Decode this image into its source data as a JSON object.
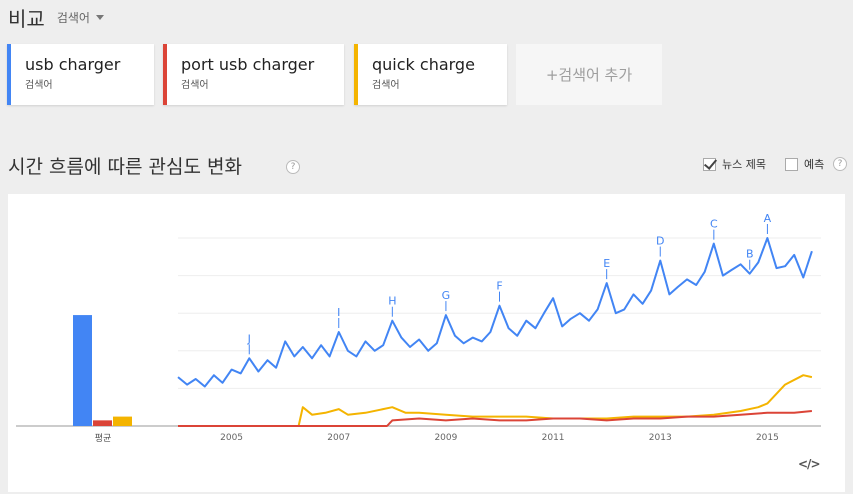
{
  "header": {
    "title": "비교",
    "type_select": "검색어"
  },
  "terms": [
    {
      "name": "usb charger",
      "sub": "검색어",
      "color": "#4285f4"
    },
    {
      "name": "port usb charger",
      "sub": "검색어",
      "color": "#db4437"
    },
    {
      "name": "quick charge",
      "sub": "검색어",
      "color": "#f4b400"
    }
  ],
  "add_term": {
    "plus": "+",
    "label": "검색어 추가"
  },
  "section": {
    "title": "시간 흐름에 따른 관심도 변화",
    "help": "?",
    "news_headlines": "뉴스 제목",
    "forecast": "예측",
    "forecast_help": "?"
  },
  "embed": "</>",
  "chart_data": {
    "type": "line",
    "average_chart": {
      "label": "평균",
      "values": [
        {
          "term": "usb charger",
          "value": 59,
          "color": "#4285f4"
        },
        {
          "term": "port usb charger",
          "value": 3,
          "color": "#db4437"
        },
        {
          "term": "quick charge",
          "value": 5,
          "color": "#f4b400"
        }
      ]
    },
    "x_range": [
      2004,
      2016
    ],
    "y_range": [
      0,
      100
    ],
    "x_ticks": [
      "2005",
      "2007",
      "2009",
      "2011",
      "2013",
      "2015"
    ],
    "grid": true,
    "series": [
      {
        "name": "usb charger",
        "color": "#4285f4",
        "points": [
          [
            2004.0,
            26
          ],
          [
            2004.17,
            22
          ],
          [
            2004.33,
            25
          ],
          [
            2004.5,
            21
          ],
          [
            2004.67,
            27
          ],
          [
            2004.83,
            23
          ],
          [
            2005.0,
            30
          ],
          [
            2005.17,
            28
          ],
          [
            2005.33,
            36
          ],
          [
            2005.5,
            29
          ],
          [
            2005.67,
            35
          ],
          [
            2005.83,
            31
          ],
          [
            2006.0,
            45
          ],
          [
            2006.17,
            37
          ],
          [
            2006.33,
            42
          ],
          [
            2006.5,
            36
          ],
          [
            2006.67,
            43
          ],
          [
            2006.83,
            37
          ],
          [
            2007.0,
            50
          ],
          [
            2007.17,
            40
          ],
          [
            2007.33,
            37
          ],
          [
            2007.5,
            45
          ],
          [
            2007.67,
            40
          ],
          [
            2007.83,
            43
          ],
          [
            2008.0,
            56
          ],
          [
            2008.17,
            47
          ],
          [
            2008.33,
            42
          ],
          [
            2008.5,
            46
          ],
          [
            2008.67,
            40
          ],
          [
            2008.83,
            44
          ],
          [
            2009.0,
            59
          ],
          [
            2009.17,
            48
          ],
          [
            2009.33,
            44
          ],
          [
            2009.5,
            47
          ],
          [
            2009.67,
            45
          ],
          [
            2009.83,
            50
          ],
          [
            2010.0,
            64
          ],
          [
            2010.17,
            52
          ],
          [
            2010.33,
            48
          ],
          [
            2010.5,
            56
          ],
          [
            2010.67,
            52
          ],
          [
            2010.83,
            60
          ],
          [
            2011.0,
            68
          ],
          [
            2011.17,
            53
          ],
          [
            2011.33,
            57
          ],
          [
            2011.5,
            60
          ],
          [
            2011.67,
            56
          ],
          [
            2011.83,
            62
          ],
          [
            2012.0,
            76
          ],
          [
            2012.17,
            60
          ],
          [
            2012.33,
            62
          ],
          [
            2012.5,
            70
          ],
          [
            2012.67,
            65
          ],
          [
            2012.83,
            72
          ],
          [
            2013.0,
            88
          ],
          [
            2013.17,
            70
          ],
          [
            2013.33,
            74
          ],
          [
            2013.5,
            78
          ],
          [
            2013.67,
            75
          ],
          [
            2013.83,
            82
          ],
          [
            2014.0,
            97
          ],
          [
            2014.17,
            80
          ],
          [
            2014.33,
            83
          ],
          [
            2014.5,
            86
          ],
          [
            2014.67,
            81
          ],
          [
            2014.83,
            87
          ],
          [
            2015.0,
            100
          ],
          [
            2015.17,
            84
          ],
          [
            2015.33,
            85
          ],
          [
            2015.5,
            91
          ],
          [
            2015.67,
            79
          ],
          [
            2015.83,
            93
          ]
        ]
      },
      {
        "name": "port usb charger",
        "color": "#db4437",
        "points": [
          [
            2004.0,
            0
          ],
          [
            2007.9,
            0
          ],
          [
            2008.0,
            3
          ],
          [
            2008.5,
            4
          ],
          [
            2009.0,
            3
          ],
          [
            2009.5,
            4
          ],
          [
            2010.0,
            3
          ],
          [
            2010.5,
            3
          ],
          [
            2011.0,
            4
          ],
          [
            2011.5,
            4
          ],
          [
            2012.0,
            3
          ],
          [
            2012.5,
            4
          ],
          [
            2013.0,
            4
          ],
          [
            2013.5,
            5
          ],
          [
            2014.0,
            5
          ],
          [
            2014.5,
            6
          ],
          [
            2015.0,
            7
          ],
          [
            2015.5,
            7
          ],
          [
            2015.83,
            8
          ]
        ]
      },
      {
        "name": "quick charge",
        "color": "#f4b400",
        "points": [
          [
            2004.0,
            0
          ],
          [
            2006.25,
            0
          ],
          [
            2006.33,
            10
          ],
          [
            2006.5,
            6
          ],
          [
            2006.75,
            7
          ],
          [
            2007.0,
            9
          ],
          [
            2007.17,
            6
          ],
          [
            2007.5,
            7
          ],
          [
            2008.0,
            10
          ],
          [
            2008.25,
            7
          ],
          [
            2008.5,
            7
          ],
          [
            2009.0,
            6
          ],
          [
            2009.5,
            5
          ],
          [
            2010.0,
            5
          ],
          [
            2010.5,
            5
          ],
          [
            2011.0,
            4
          ],
          [
            2011.5,
            4
          ],
          [
            2012.0,
            4
          ],
          [
            2012.5,
            5
          ],
          [
            2013.0,
            5
          ],
          [
            2013.5,
            5
          ],
          [
            2014.0,
            6
          ],
          [
            2014.5,
            8
          ],
          [
            2014.83,
            10
          ],
          [
            2015.0,
            12
          ],
          [
            2015.33,
            22
          ],
          [
            2015.67,
            27
          ],
          [
            2015.83,
            26
          ]
        ]
      }
    ],
    "annotations": [
      {
        "label": "J",
        "x": 2005.33,
        "y": 36
      },
      {
        "label": "I",
        "x": 2007.0,
        "y": 50
      },
      {
        "label": "H",
        "x": 2008.0,
        "y": 56
      },
      {
        "label": "G",
        "x": 2009.0,
        "y": 59
      },
      {
        "label": "F",
        "x": 2010.0,
        "y": 64
      },
      {
        "label": "E",
        "x": 2012.0,
        "y": 76
      },
      {
        "label": "D",
        "x": 2013.0,
        "y": 88
      },
      {
        "label": "C",
        "x": 2014.0,
        "y": 97
      },
      {
        "label": "B",
        "x": 2014.67,
        "y": 81
      },
      {
        "label": "A",
        "x": 2015.0,
        "y": 100
      }
    ]
  }
}
